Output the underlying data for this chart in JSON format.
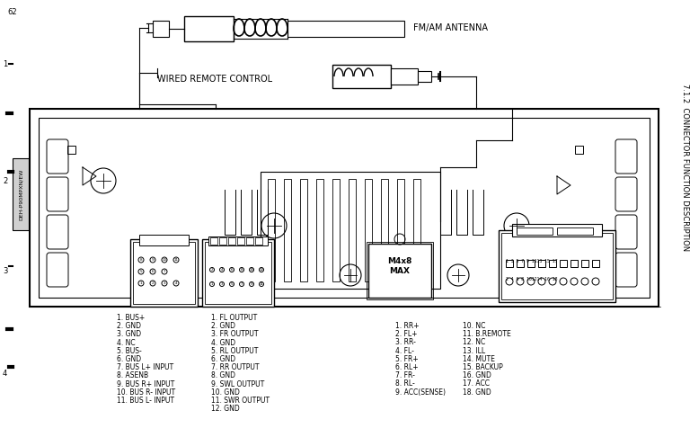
{
  "title": "7.1.2  CONNECTOR FUNCTION DESCRIPTION",
  "page_label": "62",
  "side_label": "DEH-P90MPXN/EW",
  "bg_color": "#ffffff",
  "line_color": "#000000",
  "text_color": "#000000",
  "fm_antenna_label": "FM/AM ANTENNA",
  "wired_remote_label": "WIRED REMOTE CONTROL",
  "col1_items": [
    "1. BUS+",
    "2. GND",
    "3. GND",
    "4. NC",
    "5. BUS-",
    "6. GND",
    "7. BUS L+ INPUT",
    "8. ASENB",
    "9. BUS R+ INPUT",
    "10. BUS R- INPUT",
    "11. BUS L- INPUT"
  ],
  "col2_items": [
    "1. FL OUTPUT",
    "2. GND",
    "3. FR OUTPUT",
    "4. GND",
    "5. RL OUTPUT",
    "6. GND",
    "7. RR OUTPUT",
    "8. GND",
    "9. SWL OUTPUT",
    "10. GND",
    "11. SWR OUTPUT",
    "12. GND"
  ],
  "col3_left": [
    "1. RR+",
    "2. FL+",
    "3. RR-",
    "4. FL-",
    "5. FR+",
    "6. RL+",
    "7. FR-",
    "8. RL-",
    "9. ACC(SENSE)"
  ],
  "col3_right": [
    "10. NC",
    "11. B.REMOTE",
    "12. NC",
    "13. ILL",
    "14. MUTE",
    "15. BACKUP",
    "16. GND",
    "17. ACC",
    "18. GND"
  ]
}
